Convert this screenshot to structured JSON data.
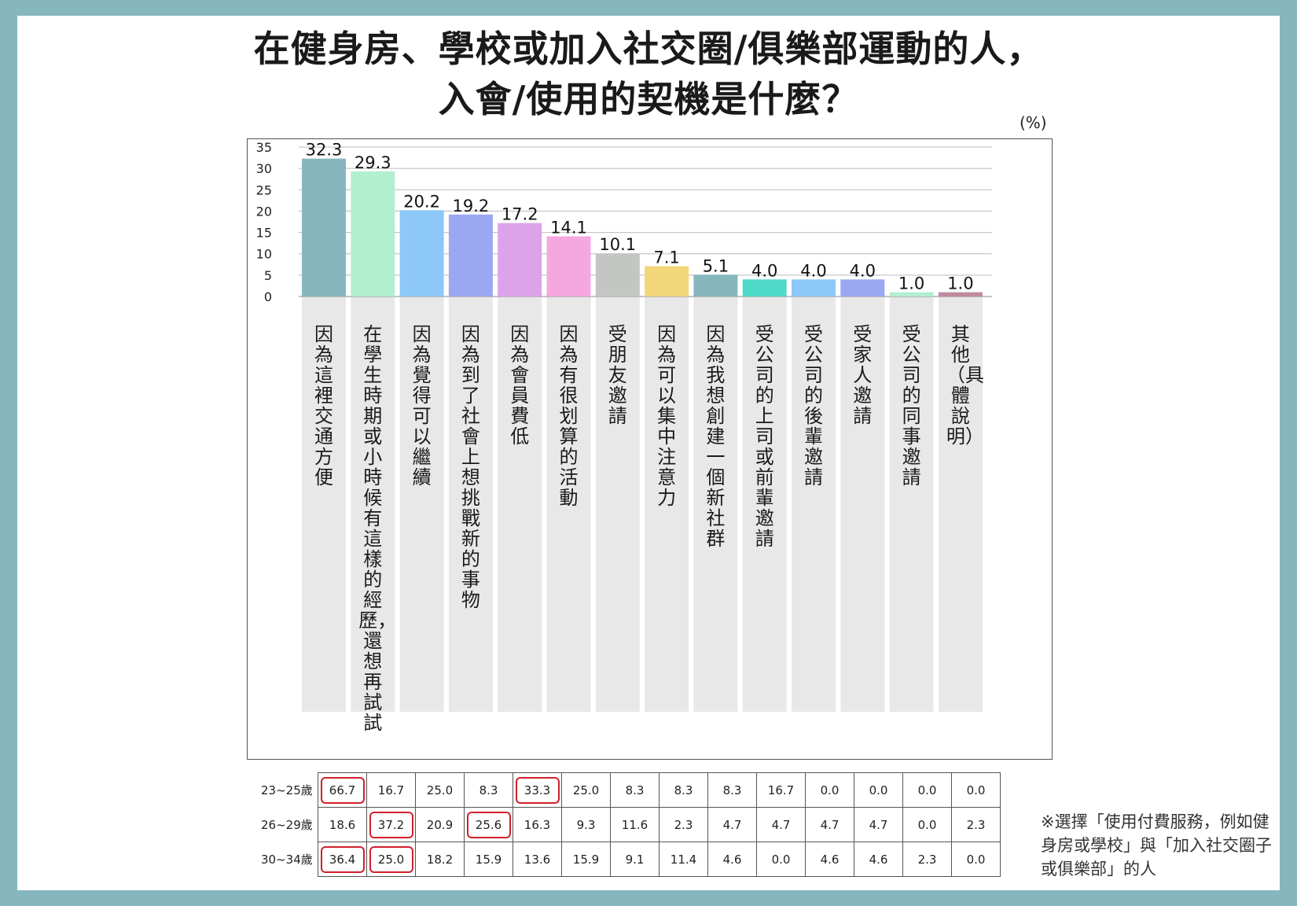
{
  "title_line1": "在健身房、學校或加入社交圈/俱樂部運動的人，",
  "title_line2": "入會/使用的契機是什麼？",
  "unit": "(%)",
  "note": "※選擇「使用付費服務，例如健身房或學校」與「加入社交圈子或俱樂部」的人",
  "chart_data": {
    "type": "bar",
    "ylim": [
      0,
      35
    ],
    "yticks": [
      0,
      5,
      10,
      15,
      20,
      25,
      30,
      35
    ],
    "grid": true,
    "categories": [
      "因為這裡交通方便",
      "在學生時期或小時候有這樣的經歷，還想再試試",
      "因為覺得可以繼續",
      "因為到了社會上想挑戰新的事物",
      "因為會員費低",
      "因為有很划算的活動",
      "受朋友邀請",
      "因為可以集中注意力",
      "因為我想創建一個新社群",
      "受公司的上司或前輩邀請",
      "受公司的後輩邀請",
      "受家人邀請",
      "受公司的同事邀請",
      "其他（具體說明）"
    ],
    "values": [
      32.3,
      29.3,
      20.2,
      19.2,
      17.2,
      14.1,
      10.1,
      7.1,
      5.1,
      4.0,
      4.0,
      4.0,
      1.0,
      1.0
    ],
    "value_labels": [
      "32.3",
      "29.3",
      "20.2",
      "19.2",
      "17.2",
      "14.1",
      "10.1",
      "7.1",
      "5.1",
      "4.0",
      "4.0",
      "4.0",
      "1.0",
      "1.0"
    ],
    "colors": [
      "#87b6be",
      "#b2efcf",
      "#8ec8f8",
      "#9aa8f2",
      "#dca3ea",
      "#f5a7e0",
      "#c3c6c3",
      "#f1d67a",
      "#87b6be",
      "#4fd9c9",
      "#8ec8f8",
      "#9aa8f2",
      "#b2efcf",
      "#c08a9e"
    ]
  },
  "table": {
    "rows": [
      {
        "age": "23~25歲",
        "values": [
          "66.7",
          "16.7",
          "25.0",
          "8.3",
          "33.3",
          "25.0",
          "8.3",
          "8.3",
          "8.3",
          "16.7",
          "0.0",
          "0.0",
          "0.0",
          "0.0"
        ],
        "highlight": [
          0,
          4
        ]
      },
      {
        "age": "26~29歲",
        "values": [
          "18.6",
          "37.2",
          "20.9",
          "25.6",
          "16.3",
          "9.3",
          "11.6",
          "2.3",
          "4.7",
          "4.7",
          "4.7",
          "4.7",
          "0.0",
          "2.3"
        ],
        "highlight": [
          1,
          3
        ]
      },
      {
        "age": "30~34歲",
        "values": [
          "36.4",
          "25.0",
          "18.2",
          "15.9",
          "13.6",
          "15.9",
          "9.1",
          "11.4",
          "4.6",
          "0.0",
          "4.6",
          "4.6",
          "2.3",
          "0.0"
        ],
        "highlight": [
          0,
          1
        ]
      }
    ],
    "highlight_color": "#d0202a"
  }
}
